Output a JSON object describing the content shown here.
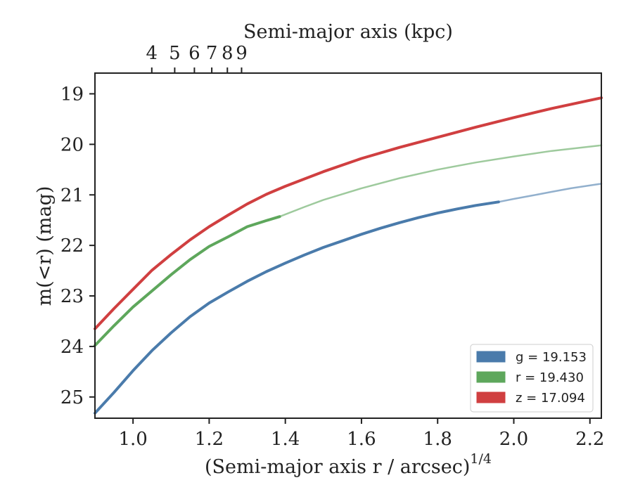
{
  "chart_data": {
    "type": "line",
    "title": "",
    "xlabel": "(Semi-major axis r / arcsec)",
    "xlabel_superscript": "1/4",
    "ylabel": "m(<r) (mag)",
    "top_xlabel": "Semi-major axis (kpc)",
    "xlim": [
      0.9,
      2.23
    ],
    "ylim": [
      25.42,
      18.59
    ],
    "y_inverted": true,
    "x_ticks": [
      "1.0",
      "1.2",
      "1.4",
      "1.6",
      "1.8",
      "2.0",
      "2.2"
    ],
    "y_ticks": [
      "19",
      "20",
      "21",
      "22",
      "23",
      "24",
      "25"
    ],
    "top_ticks": [
      "4",
      "5",
      "6",
      "7",
      "8",
      "9"
    ],
    "top_tick_values_kpc": [
      4,
      5,
      6,
      7,
      8,
      9
    ],
    "top_axis_kpc_per_arcsec4": 3.3,
    "grid": false,
    "legend_position": "lower-right",
    "series": [
      {
        "name": "g = 19.153",
        "color": "#4a7bab",
        "x": [
          0.9,
          0.95,
          1.0,
          1.05,
          1.1,
          1.15,
          1.2,
          1.25,
          1.3,
          1.35,
          1.4,
          1.45,
          1.5,
          1.55,
          1.6,
          1.65,
          1.7,
          1.75,
          1.8,
          1.85,
          1.9,
          1.96,
          2.0,
          2.05,
          2.1,
          2.15,
          2.23
        ],
        "y": [
          25.32,
          24.91,
          24.48,
          24.08,
          23.73,
          23.41,
          23.14,
          22.92,
          22.71,
          22.52,
          22.35,
          22.19,
          22.04,
          21.91,
          21.78,
          21.66,
          21.55,
          21.45,
          21.36,
          21.28,
          21.21,
          21.14,
          21.08,
          21.01,
          20.94,
          20.87,
          20.78
        ],
        "highlight_until_x": 1.96
      },
      {
        "name": "r = 19.430",
        "color": "#5ea75c",
        "x": [
          0.9,
          0.95,
          1.0,
          1.05,
          1.1,
          1.15,
          1.2,
          1.25,
          1.3,
          1.35,
          1.385,
          1.45,
          1.5,
          1.6,
          1.7,
          1.8,
          1.9,
          2.0,
          2.1,
          2.23
        ],
        "y": [
          23.98,
          23.59,
          23.22,
          22.9,
          22.58,
          22.28,
          22.02,
          21.83,
          21.63,
          21.51,
          21.43,
          21.24,
          21.1,
          20.87,
          20.67,
          20.5,
          20.36,
          20.24,
          20.13,
          20.02
        ],
        "highlight_until_x": 1.385
      },
      {
        "name": "z = 17.094",
        "color": "#d03f40",
        "x": [
          0.9,
          0.95,
          1.0,
          1.05,
          1.1,
          1.15,
          1.2,
          1.25,
          1.3,
          1.35,
          1.4,
          1.5,
          1.6,
          1.7,
          1.8,
          1.9,
          2.0,
          2.1,
          2.23
        ],
        "y": [
          23.65,
          23.25,
          22.87,
          22.49,
          22.18,
          21.89,
          21.63,
          21.4,
          21.18,
          20.99,
          20.83,
          20.54,
          20.28,
          20.06,
          19.86,
          19.66,
          19.47,
          19.29,
          19.08
        ],
        "highlight_until_x": 2.23
      }
    ]
  }
}
